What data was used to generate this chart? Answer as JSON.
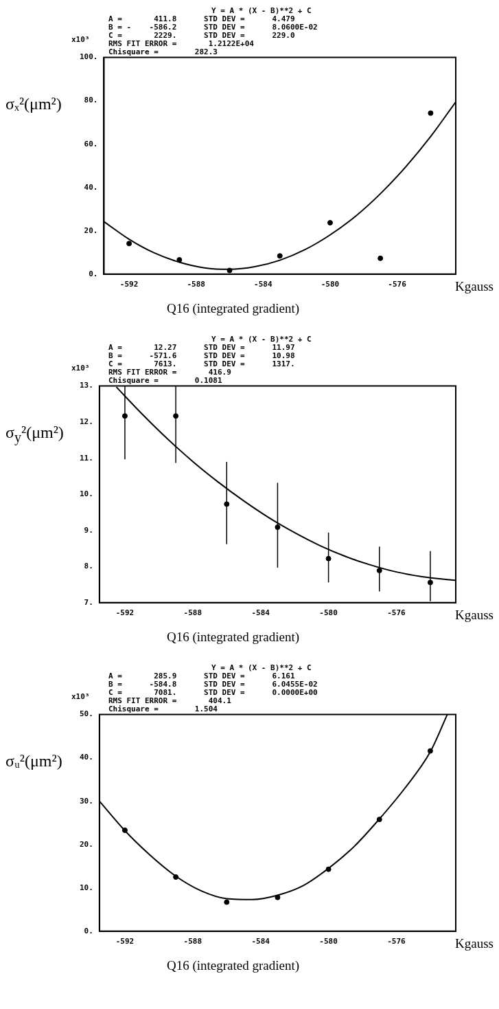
{
  "chart_data": [
    {
      "type": "scatter",
      "xlabel": "Q16 (integrated gradient)",
      "ylabel": "σₓ²(μm²)",
      "annotations": [
        "Y = A * (X - B)**2 + C",
        "A =       411.8      STD DEV =      4.479",
        "B = -    -586.2      STD DEV =      8.0600E-02",
        "C =       2229.      STD DEV =      229.0",
        "RMS FIT ERROR =       1.2122E+04",
        "Chisquare =        282.3",
        "x10³",
        "Kgauss"
      ],
      "xlim": [
        -593.5,
        -572.5
      ],
      "xticks": [
        -592,
        -588,
        -584,
        -580,
        -576
      ],
      "ylim": [
        0,
        100
      ],
      "yticks": [
        {
          "value": 0,
          "label": "0."
        },
        {
          "value": 20,
          "label": "20."
        },
        {
          "value": 40,
          "label": "40."
        },
        {
          "value": 60,
          "label": "60."
        },
        {
          "value": 80,
          "label": "80."
        },
        {
          "value": 100,
          "label": "100."
        }
      ],
      "series": [
        {
          "type": "scatter",
          "marker": "circle",
          "color": "#000000",
          "x": [
            -592,
            -589,
            -586,
            -583,
            -580,
            -577,
            -574
          ],
          "values": [
            14.1,
            6.6,
            1.7,
            8.4,
            23.7,
            7.3,
            74.3
          ]
        },
        {
          "type": "line",
          "color": "#000000",
          "x": [
            -593.5,
            -592,
            -590.5,
            -589,
            -587.5,
            -586,
            -584.5,
            -583,
            -581.5,
            -580,
            -578.5,
            -577,
            -575.5,
            -574,
            -572.5
          ],
          "values": [
            24.2,
            16.1,
            9.8,
            5.5,
            2.9,
            2.2,
            3.4,
            6.4,
            11.3,
            18.1,
            26.6,
            37.1,
            49.4,
            63.5,
            79.5
          ]
        }
      ]
    },
    {
      "type": "scatter",
      "xlabel": "Q16 (integrated gradient)",
      "ylabel": "σ$_{y}$²(μm²)",
      "annotations": [
        "Y = A * (X - B)**2 + C",
        "A =       12.27      STD DEV =      11.97",
        "B =      -571.6      STD DEV =      10.98",
        "C =       7613.      STD DEV =      1317.",
        "RMS FIT ERROR =       416.9",
        "Chisquare =        0.1081",
        "x10³",
        "Kgauss"
      ],
      "xlim": [
        -593.5,
        -572.5
      ],
      "xticks": [
        -592,
        -588,
        -584,
        -580,
        -576
      ],
      "ylim": [
        7,
        13
      ],
      "yticks": [
        {
          "value": 7,
          "label": "7."
        },
        {
          "value": 8,
          "label": "8."
        },
        {
          "value": 9,
          "label": "9."
        },
        {
          "value": 10,
          "label": "10."
        },
        {
          "value": 11,
          "label": "11."
        },
        {
          "value": 12,
          "label": "12."
        },
        {
          "value": 13,
          "label": "13."
        }
      ],
      "series": [
        {
          "type": "scatter",
          "marker": "circle",
          "color": "#000000",
          "x": [
            -592,
            -589,
            -586,
            -583,
            -580,
            -577,
            -574
          ],
          "values": [
            12.17,
            12.17,
            9.73,
            9.09,
            8.22,
            7.89,
            7.56
          ],
          "errors": [
            [
              10.97,
              13
            ],
            [
              10.87,
              13
            ],
            [
              8.62,
              10.9
            ],
            [
              7.97,
              10.32
            ],
            [
              7.56,
              8.94
            ],
            [
              7.31,
              8.55
            ],
            [
              7.04,
              8.43
            ]
          ]
        },
        {
          "type": "line",
          "color": "#000000",
          "x": [
            -592.5,
            -591,
            -589.5,
            -588,
            -586.5,
            -585,
            -583.5,
            -582,
            -580.5,
            -579,
            -577.5,
            -576,
            -574.5,
            -573,
            -572.5
          ],
          "values": [
            12.97,
            12.23,
            11.54,
            10.91,
            10.34,
            9.82,
            9.35,
            8.94,
            8.58,
            8.28,
            8.04,
            7.85,
            7.72,
            7.64,
            7.62
          ]
        }
      ]
    },
    {
      "type": "scatter",
      "xlabel": "Q16 (integrated gradient)",
      "ylabel": "σᵤ²(μm²)",
      "annotations": [
        "Y = A * (X - B)**2 + C",
        "A =       285.9      STD DEV =      6.161",
        "B =      -584.8      STD DEV =      6.0455E-02",
        "C =       7081.      STD DEV =      0.0000E+00",
        "RMS FIT ERROR =       404.1",
        "Chisquare =        1.504",
        "x10³",
        "Kgauss"
      ],
      "xlim": [
        -593.5,
        -572.5
      ],
      "xticks": [
        -592,
        -588,
        -584,
        -580,
        -576
      ],
      "ylim": [
        0,
        50
      ],
      "yticks": [
        {
          "value": 0,
          "label": "0."
        },
        {
          "value": 10,
          "label": "10."
        },
        {
          "value": 20,
          "label": "20."
        },
        {
          "value": 30,
          "label": "30."
        },
        {
          "value": 40,
          "label": "40."
        },
        {
          "value": 50,
          "label": "50."
        }
      ],
      "series": [
        {
          "type": "scatter",
          "marker": "circle",
          "color": "#000000",
          "x": [
            -592,
            -589,
            -586,
            -583,
            -580,
            -577,
            -574
          ],
          "values": [
            23.3,
            12.5,
            6.7,
            7.8,
            14.3,
            25.8,
            41.6
          ]
        },
        {
          "type": "line",
          "color": "#000000",
          "x": [
            -593.5,
            -592,
            -590.5,
            -589,
            -587.5,
            -586,
            -584.5,
            -583,
            -581.5,
            -580,
            -578.5,
            -577,
            -575.5,
            -574,
            -573
          ],
          "values": [
            30,
            23.2,
            17.5,
            12.7,
            9.3,
            7.5,
            7.3,
            8.3,
            10.5,
            14.5,
            19.5,
            25.9,
            33,
            41.4,
            50
          ]
        }
      ]
    }
  ]
}
